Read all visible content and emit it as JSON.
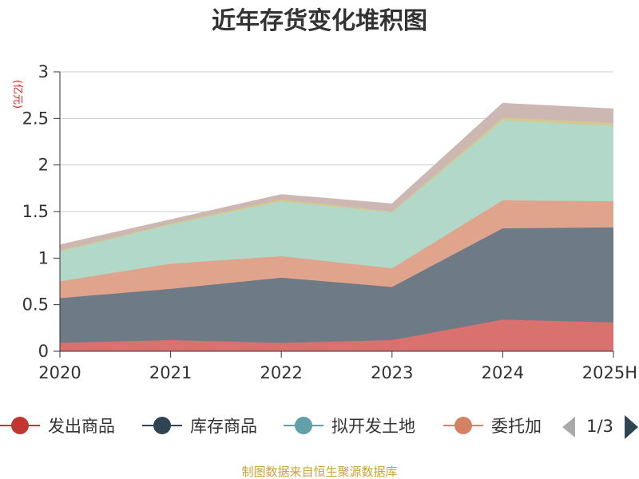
{
  "chart_data": {
    "type": "area",
    "stacked": true,
    "title": "近年存货变化堆积图",
    "unit_label": "(亿元)",
    "x": [
      "2020",
      "2021",
      "2022",
      "2023",
      "2024",
      "2025H"
    ],
    "ylim": [
      0,
      3
    ],
    "yticks": [
      "0",
      "0.5",
      "1",
      "1.5",
      "2",
      "2.5",
      "3"
    ],
    "grid": true,
    "series": [
      {
        "name": "发出商品",
        "color": "#d9716e",
        "values": [
          0.09,
          0.12,
          0.09,
          0.12,
          0.34,
          0.31
        ]
      },
      {
        "name": "库存商品",
        "color": "#6e7b87",
        "values": [
          0.48,
          0.55,
          0.7,
          0.57,
          0.98,
          1.02
        ]
      },
      {
        "name": "委托加工物资",
        "color": "#e0a48d",
        "values": [
          0.18,
          0.27,
          0.23,
          0.2,
          0.3,
          0.28
        ]
      },
      {
        "name": "拟开发土地",
        "color": "#b1d8c8",
        "values": [
          0.32,
          0.42,
          0.59,
          0.6,
          0.86,
          0.81
        ]
      },
      {
        "name": "",
        "color": "#d6c98e",
        "values": [
          0.01,
          0.01,
          0.02,
          0.01,
          0.03,
          0.03
        ]
      },
      {
        "name": "",
        "color": "#cdb7b3",
        "values": [
          0.06,
          0.04,
          0.05,
          0.08,
          0.15,
          0.15
        ]
      }
    ],
    "legend": {
      "position": "bottom",
      "items": [
        {
          "label": "发出商品",
          "color": "#c23531"
        },
        {
          "label": "库存商品",
          "color": "#2f4554"
        },
        {
          "label": "拟开发土地",
          "color": "#61a0a8"
        },
        {
          "label": "委托加",
          "color": "#d48265"
        }
      ],
      "page": "1/3"
    }
  },
  "footer": {
    "source": "制图数据来自恒生聚源数据库"
  }
}
